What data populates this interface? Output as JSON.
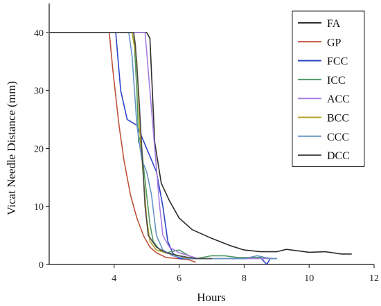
{
  "chart_data": {
    "type": "line",
    "title": "",
    "xlabel": "Hours",
    "ylabel": "Vicat Needle Distance (mm)",
    "xlim": [
      2,
      12
    ],
    "ylim": [
      0,
      45
    ],
    "xticks": [
      4,
      6,
      8,
      10,
      12
    ],
    "yticks": [
      0,
      10,
      20,
      30,
      40
    ],
    "grid": false,
    "legend_position": "top-right",
    "series": [
      {
        "name": "FA",
        "color": "#2b2b2b",
        "points": [
          [
            2.0,
            40
          ],
          [
            5.0,
            40
          ],
          [
            5.1,
            39
          ],
          [
            5.25,
            21
          ],
          [
            5.45,
            14
          ],
          [
            5.7,
            11
          ],
          [
            6.0,
            8
          ],
          [
            6.4,
            6
          ],
          [
            7.0,
            4.5
          ],
          [
            7.6,
            3.2
          ],
          [
            8.0,
            2.5
          ],
          [
            8.5,
            2.2
          ],
          [
            9.0,
            2.2
          ],
          [
            9.3,
            2.6
          ],
          [
            9.6,
            2.4
          ],
          [
            10.0,
            2.1
          ],
          [
            10.5,
            2.2
          ],
          [
            11.0,
            1.8
          ],
          [
            11.3,
            1.8
          ]
        ]
      },
      {
        "name": "GP",
        "color": "#c0503a",
        "points": [
          [
            2.0,
            40
          ],
          [
            3.85,
            40
          ],
          [
            3.95,
            34
          ],
          [
            4.05,
            29
          ],
          [
            4.15,
            24
          ],
          [
            4.3,
            18
          ],
          [
            4.5,
            12
          ],
          [
            4.7,
            8
          ],
          [
            4.9,
            5
          ],
          [
            5.1,
            3
          ],
          [
            5.3,
            2
          ],
          [
            5.6,
            1.2
          ],
          [
            6.0,
            1
          ],
          [
            6.3,
            0.8
          ],
          [
            6.5,
            0.4
          ]
        ]
      },
      {
        "name": "FCC",
        "color": "#2b44c8",
        "points": [
          [
            2.0,
            40
          ],
          [
            4.05,
            40
          ],
          [
            4.2,
            30
          ],
          [
            4.4,
            25
          ],
          [
            4.7,
            24
          ],
          [
            5.0,
            20
          ],
          [
            5.3,
            16
          ],
          [
            5.5,
            10
          ],
          [
            5.65,
            4
          ],
          [
            5.8,
            2
          ],
          [
            6.0,
            1
          ],
          [
            7.0,
            1
          ],
          [
            8.0,
            1
          ],
          [
            8.5,
            1.2
          ],
          [
            8.7,
            0
          ],
          [
            8.8,
            1
          ],
          [
            9.0,
            1
          ]
        ]
      },
      {
        "name": "ICC",
        "color": "#4f9a64",
        "points": [
          [
            2.0,
            40
          ],
          [
            4.6,
            40
          ],
          [
            4.7,
            30
          ],
          [
            4.75,
            21
          ],
          [
            4.8,
            22
          ],
          [
            4.85,
            20
          ],
          [
            4.9,
            17
          ],
          [
            5.0,
            12
          ],
          [
            5.1,
            7
          ],
          [
            5.2,
            4
          ],
          [
            5.4,
            2.5
          ],
          [
            5.6,
            2
          ],
          [
            6.0,
            2.5
          ],
          [
            6.3,
            1.5
          ],
          [
            6.5,
            1
          ],
          [
            7.0,
            1.5
          ],
          [
            7.4,
            1.5
          ],
          [
            7.8,
            1.2
          ],
          [
            8.5,
            1.2
          ],
          [
            9.0,
            1
          ]
        ]
      },
      {
        "name": "ACC",
        "color": "#a67de0",
        "points": [
          [
            2.0,
            40
          ],
          [
            4.95,
            40
          ],
          [
            5.1,
            30
          ],
          [
            5.25,
            20
          ],
          [
            5.4,
            10
          ],
          [
            5.5,
            5
          ],
          [
            5.7,
            3
          ],
          [
            6.0,
            2
          ],
          [
            6.3,
            1.5
          ],
          [
            6.6,
            1
          ],
          [
            7.0,
            1
          ],
          [
            8.0,
            1
          ],
          [
            8.5,
            1
          ],
          [
            8.8,
            1
          ],
          [
            9.0,
            1
          ]
        ]
      },
      {
        "name": "BCC",
        "color": "#b5a326",
        "points": [
          [
            2.0,
            40
          ],
          [
            4.55,
            40
          ],
          [
            4.7,
            35
          ],
          [
            4.8,
            22
          ],
          [
            4.9,
            15
          ],
          [
            5.0,
            8
          ],
          [
            5.1,
            4
          ],
          [
            5.3,
            2.5
          ],
          [
            5.6,
            2
          ],
          [
            6.0,
            1.5
          ],
          [
            6.3,
            1
          ],
          [
            7.0,
            1
          ],
          [
            7.5,
            1
          ]
        ]
      },
      {
        "name": "CCC",
        "color": "#6593c8",
        "points": [
          [
            2.0,
            40
          ],
          [
            4.45,
            40
          ],
          [
            4.55,
            36
          ],
          [
            4.7,
            24
          ],
          [
            4.85,
            18
          ],
          [
            5.0,
            16
          ],
          [
            5.15,
            12
          ],
          [
            5.3,
            5
          ],
          [
            5.5,
            2.5
          ],
          [
            5.8,
            1.5
          ],
          [
            6.2,
            1
          ],
          [
            7.0,
            1
          ],
          [
            8.0,
            1
          ],
          [
            8.4,
            1.5
          ],
          [
            8.8,
            1
          ],
          [
            9.0,
            1
          ]
        ]
      },
      {
        "name": "DCC",
        "color": "#4a4a4a",
        "points": [
          [
            2.0,
            40
          ],
          [
            4.6,
            40
          ],
          [
            4.65,
            38
          ],
          [
            4.75,
            30
          ],
          [
            4.85,
            20
          ],
          [
            4.95,
            10
          ],
          [
            5.05,
            5
          ],
          [
            5.3,
            3
          ],
          [
            5.6,
            2
          ],
          [
            6.0,
            1.5
          ],
          [
            6.5,
            1
          ],
          [
            7.0,
            1
          ]
        ]
      }
    ]
  }
}
